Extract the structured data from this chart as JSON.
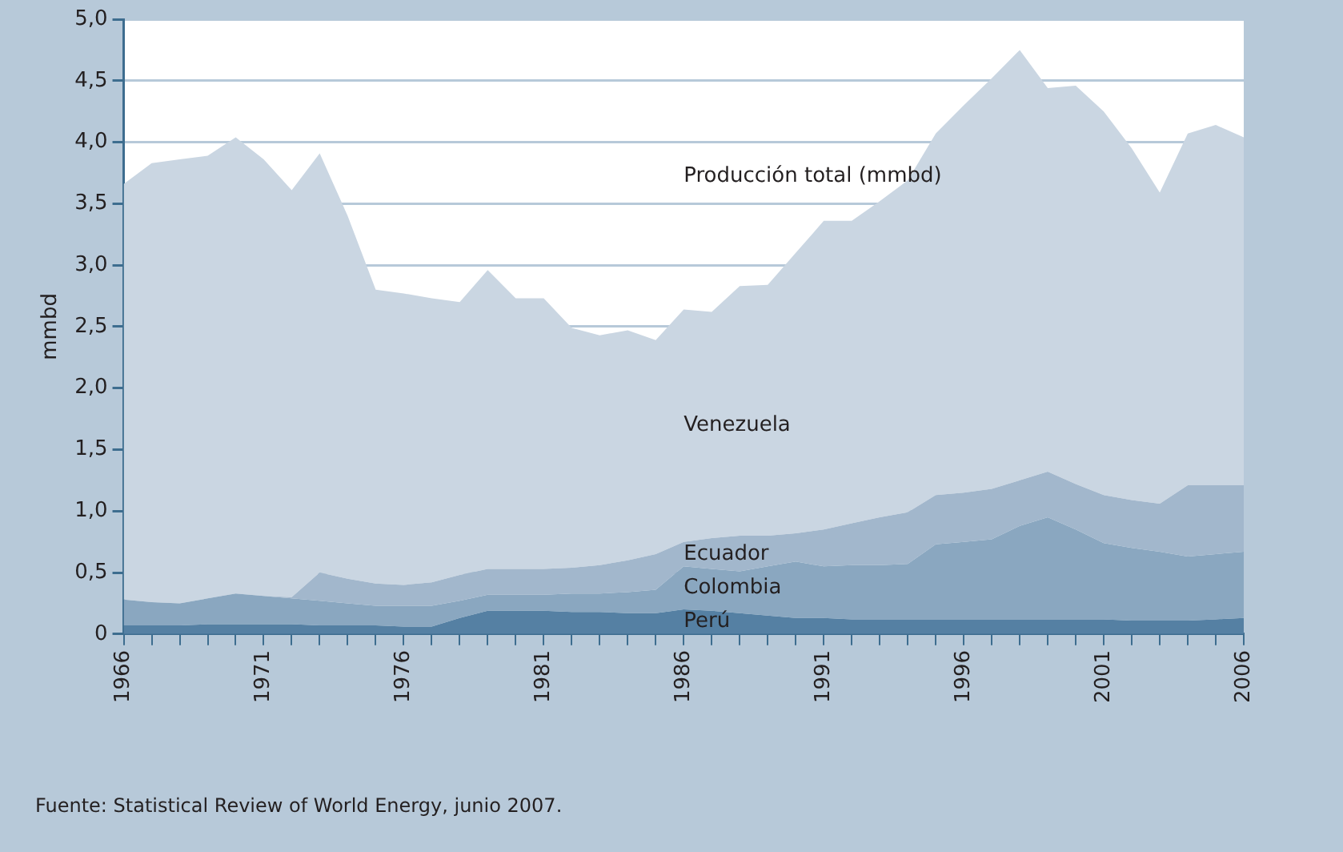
{
  "chart_data": {
    "type": "area",
    "stacked": true,
    "ylabel": "mmbd",
    "x": [
      1966,
      1967,
      1968,
      1969,
      1970,
      1971,
      1972,
      1973,
      1974,
      1975,
      1976,
      1977,
      1978,
      1979,
      1980,
      1981,
      1982,
      1983,
      1984,
      1985,
      1986,
      1987,
      1988,
      1989,
      1990,
      1991,
      1992,
      1993,
      1994,
      1995,
      1996,
      1997,
      1998,
      1999,
      2000,
      2001,
      2002,
      2003,
      2004,
      2005,
      2006
    ],
    "series": [
      {
        "name": "Perú",
        "color": "#5580a3",
        "values": [
          0.07,
          0.07,
          0.07,
          0.08,
          0.08,
          0.08,
          0.08,
          0.07,
          0.07,
          0.07,
          0.06,
          0.06,
          0.13,
          0.19,
          0.19,
          0.19,
          0.18,
          0.18,
          0.17,
          0.17,
          0.2,
          0.19,
          0.17,
          0.15,
          0.13,
          0.13,
          0.12,
          0.12,
          0.12,
          0.12,
          0.12,
          0.12,
          0.12,
          0.12,
          0.12,
          0.12,
          0.11,
          0.11,
          0.11,
          0.12,
          0.13
        ]
      },
      {
        "name": "Colombia",
        "color": "#8aa7c0",
        "values": [
          0.21,
          0.19,
          0.18,
          0.21,
          0.25,
          0.23,
          0.21,
          0.2,
          0.18,
          0.16,
          0.17,
          0.17,
          0.14,
          0.13,
          0.13,
          0.13,
          0.15,
          0.15,
          0.17,
          0.19,
          0.35,
          0.34,
          0.34,
          0.4,
          0.46,
          0.42,
          0.44,
          0.44,
          0.45,
          0.61,
          0.63,
          0.65,
          0.76,
          0.83,
          0.73,
          0.62,
          0.59,
          0.56,
          0.52,
          0.53,
          0.54
        ]
      },
      {
        "name": "Ecuador",
        "color": "#a2b7cc",
        "values": [
          0,
          0,
          0,
          0,
          0,
          0,
          0.01,
          0.23,
          0.2,
          0.18,
          0.17,
          0.19,
          0.21,
          0.21,
          0.21,
          0.21,
          0.21,
          0.23,
          0.26,
          0.29,
          0.2,
          0.25,
          0.29,
          0.25,
          0.23,
          0.3,
          0.34,
          0.39,
          0.42,
          0.4,
          0.4,
          0.41,
          0.37,
          0.37,
          0.37,
          0.39,
          0.39,
          0.39,
          0.58,
          0.56,
          0.54
        ]
      },
      {
        "name": "Venezuela",
        "color": "#cad6e2",
        "values": [
          3.38,
          3.57,
          3.61,
          3.6,
          3.71,
          3.55,
          3.31,
          3.41,
          2.95,
          2.39,
          2.37,
          2.31,
          2.22,
          2.43,
          2.2,
          2.2,
          1.95,
          1.87,
          1.87,
          1.74,
          1.89,
          1.84,
          2.03,
          2.04,
          2.28,
          2.51,
          2.46,
          2.57,
          2.7,
          2.94,
          3.15,
          3.34,
          3.5,
          3.12,
          3.24,
          3.12,
          2.86,
          2.53,
          2.86,
          2.93,
          2.83
        ]
      }
    ],
    "xlim": [
      1966,
      2006
    ],
    "xticks": [
      1966,
      {
        "value": 1967,
        "label": null
      },
      {
        "value": 1968,
        "label": null
      },
      {
        "value": 1969,
        "label": null
      },
      {
        "value": 1970,
        "label": null
      },
      1971,
      {
        "value": 1972,
        "label": null
      },
      {
        "value": 1973,
        "label": null
      },
      {
        "value": 1974,
        "label": null
      },
      {
        "value": 1975,
        "label": null
      },
      1976,
      {
        "value": 1977,
        "label": null
      },
      {
        "value": 1978,
        "label": null
      },
      {
        "value": 1979,
        "label": null
      },
      {
        "value": 1980,
        "label": null
      },
      1981,
      {
        "value": 1982,
        "label": null
      },
      {
        "value": 1983,
        "label": null
      },
      {
        "value": 1984,
        "label": null
      },
      {
        "value": 1985,
        "label": null
      },
      1986,
      {
        "value": 1987,
        "label": null
      },
      {
        "value": 1988,
        "label": null
      },
      {
        "value": 1989,
        "label": null
      },
      {
        "value": 1990,
        "label": null
      },
      1991,
      {
        "value": 1992,
        "label": null
      },
      {
        "value": 1993,
        "label": null
      },
      {
        "value": 1994,
        "label": null
      },
      {
        "value": 1995,
        "label": null
      },
      1996,
      {
        "value": 1997,
        "label": null
      },
      {
        "value": 1998,
        "label": null
      },
      {
        "value": 1999,
        "label": null
      },
      {
        "value": 2000,
        "label": null
      },
      2001,
      {
        "value": 2002,
        "label": null
      },
      {
        "value": 2003,
        "label": null
      },
      {
        "value": 2004,
        "label": null
      },
      {
        "value": 2005,
        "label": null
      },
      2006
    ],
    "ylim": [
      0,
      5
    ],
    "yticks": [
      0,
      {
        "value": 0.5,
        "label": "0,5"
      },
      {
        "value": 1,
        "label": "1,0"
      },
      {
        "value": 1.5,
        "label": "1,5"
      },
      {
        "value": 2,
        "label": "2,0"
      },
      {
        "value": 2.5,
        "label": "2,5"
      },
      {
        "value": 3,
        "label": "3,0"
      },
      {
        "value": 3.5,
        "label": "3,5"
      },
      {
        "value": 4,
        "label": "4,0"
      },
      {
        "value": 4.5,
        "label": "4,5"
      },
      {
        "value": 5,
        "label": "5,0"
      }
    ],
    "grid": "y",
    "legend": false,
    "annotations": [
      "Producción total (mmbd)",
      "Fuente: Statistical Review of World Energy, junio 2007."
    ]
  }
}
